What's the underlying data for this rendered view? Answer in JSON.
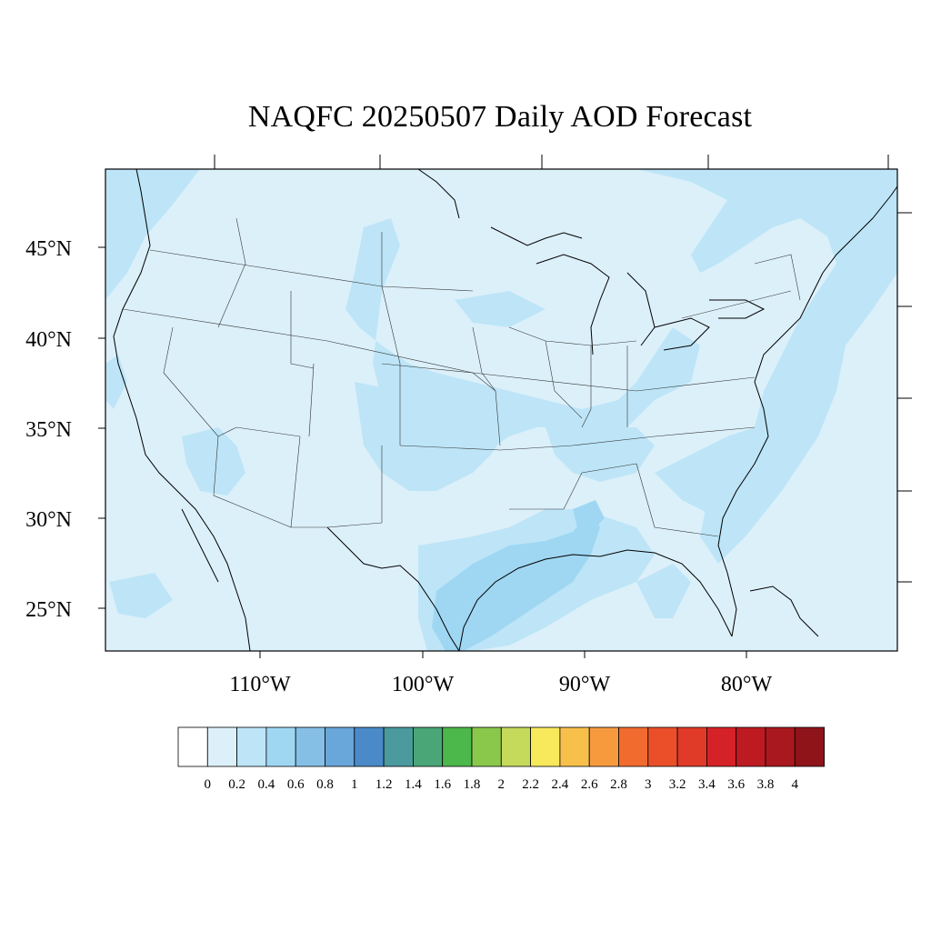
{
  "title": "NAQFC 20250507 Daily AOD Forecast",
  "map": {
    "lat_labels": [
      "45°N",
      "40°N",
      "35°N",
      "30°N",
      "25°N"
    ],
    "lon_labels": [
      "110°W",
      "100°W",
      "90°W",
      "80°W"
    ],
    "background_color": "#dcf0fa"
  },
  "colorbar": {
    "labels": [
      "0",
      "0.2",
      "0.4",
      "0.6",
      "0.8",
      "1",
      "1.2",
      "1.4",
      "1.6",
      "1.8",
      "2",
      "2.2",
      "2.4",
      "2.6",
      "2.8",
      "3",
      "3.2",
      "3.4",
      "3.6",
      "3.8",
      "4"
    ],
    "colors": [
      "#ffffff",
      "#dcf0fa",
      "#bde5f7",
      "#9fd7f3",
      "#85bfe6",
      "#69a6da",
      "#4a8ac8",
      "#4a9a9e",
      "#4aa676",
      "#4cb74a",
      "#8ac84c",
      "#c5d95a",
      "#f7e85c",
      "#f7c04a",
      "#f79a3e",
      "#f26b2e",
      "#ea4f2a",
      "#e03a28",
      "#d42228",
      "#be1a22",
      "#a9181e",
      "#8e141a"
    ]
  }
}
